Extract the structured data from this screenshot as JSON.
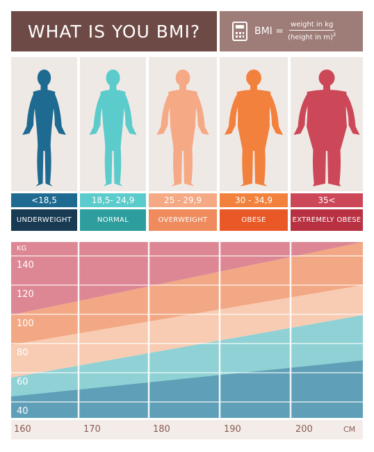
{
  "title": "WHAT IS YOU BMI?",
  "formula": {
    "lhs": "BMI =",
    "numerator": "weight in kg",
    "denominator": "(height in m)",
    "exponent": "2",
    "icon": "calculator-icon"
  },
  "categories": [
    {
      "range": "<18,5",
      "label": "UNDERWEIGHT",
      "figure_color": "#1f6a91",
      "range_color": "#1f6a91",
      "label_color": "#183a52"
    },
    {
      "range": "18,5- 24,9",
      "label": "NORMAL",
      "figure_color": "#5ccbcb",
      "range_color": "#5ccbcb",
      "label_color": "#2d9e9d"
    },
    {
      "range": "25 - 29,9",
      "label": "OVERWEIGHT",
      "figure_color": "#f5a985",
      "range_color": "#f5a985",
      "label_color": "#ef8b5c"
    },
    {
      "range": "30 - 34,9",
      "label": "OBESE",
      "figure_color": "#f2813d",
      "range_color": "#f2813d",
      "label_color": "#e95928"
    },
    {
      "range": "35<",
      "label": "EXTREMELY OBESE",
      "figure_color": "#cc4858",
      "range_color": "#cc4858",
      "label_color": "#b83142"
    }
  ],
  "chart": {
    "y_unit": "KG",
    "x_unit": "CM",
    "y_ticks": [
      "140",
      "120",
      "100",
      "80",
      "60",
      "40"
    ],
    "x_ticks": [
      "160",
      "170",
      "180",
      "190",
      "200"
    ],
    "band_colors": [
      "#5fa0b8",
      "#8fd1d4",
      "#f8ccb3",
      "#f2a884",
      "#dd8795"
    ]
  }
}
